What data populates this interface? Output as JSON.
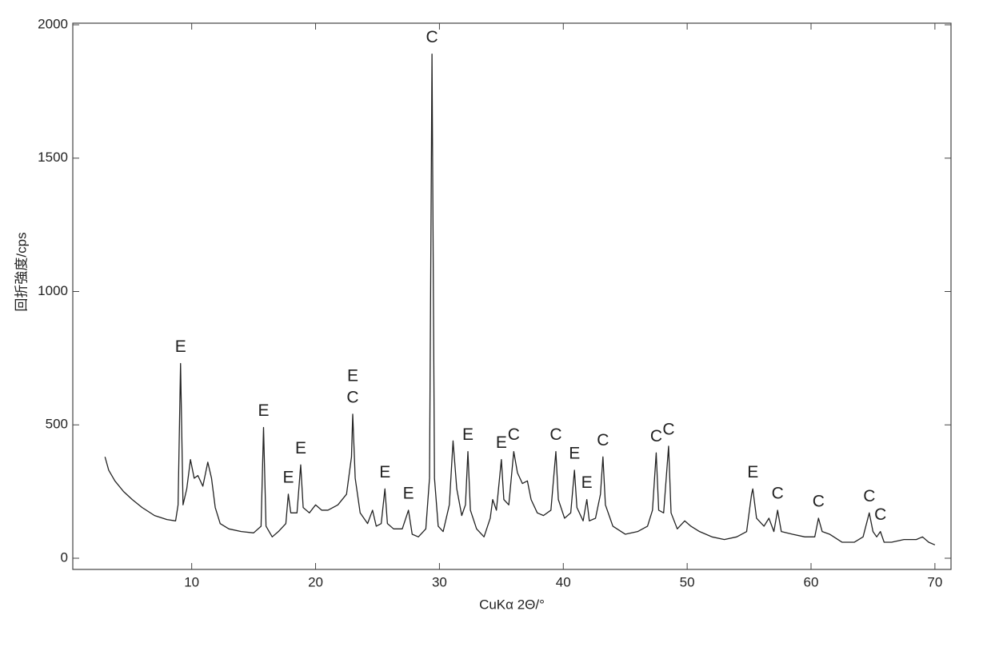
{
  "chart_data": {
    "type": "line",
    "xlabel": "CuKα 2Θ/°",
    "ylabel": "回折強度/cps",
    "xlim": [
      0.4,
      71.3
    ],
    "ylim": [
      -42,
      2006
    ],
    "xticks": [
      10,
      20,
      30,
      40,
      50,
      60,
      70
    ],
    "yticks": [
      0,
      500,
      1000,
      1500,
      2000
    ],
    "color": "#222222",
    "x": [
      3.0,
      3.3,
      3.8,
      4.5,
      5.2,
      6,
      7,
      8,
      8.7,
      8.9,
      9.1,
      9.3,
      9.6,
      9.9,
      10.2,
      10.5,
      10.9,
      11.3,
      11.6,
      11.9,
      12.3,
      13,
      14,
      15,
      15.6,
      15.8,
      16,
      16.5,
      17,
      17.6,
      17.8,
      18,
      18.5,
      18.8,
      19,
      19.5,
      20,
      20.5,
      21,
      21.8,
      22.5,
      22.9,
      23.0,
      23.2,
      23.6,
      24.2,
      24.6,
      24.9,
      25.3,
      25.6,
      25.8,
      26.3,
      27,
      27.5,
      27.8,
      28.3,
      28.9,
      29.2,
      29.4,
      29.6,
      29.9,
      30.3,
      30.8,
      31.1,
      31.4,
      31.8,
      32.1,
      32.3,
      32.5,
      33,
      33.6,
      34.1,
      34.3,
      34.6,
      35.0,
      35.2,
      35.6,
      36.0,
      36.3,
      36.7,
      37.1,
      37.4,
      37.9,
      38.4,
      39,
      39.4,
      39.6,
      40.1,
      40.6,
      40.9,
      41.1,
      41.6,
      41.9,
      42.1,
      42.6,
      43.0,
      43.2,
      43.4,
      44,
      45,
      46,
      46.8,
      47.2,
      47.5,
      47.7,
      48.1,
      48.5,
      48.7,
      49.2,
      49.8,
      50.3,
      51,
      52,
      53,
      54,
      54.8,
      55.2,
      55.3,
      55.6,
      56.2,
      56.6,
      57,
      57.3,
      57.6,
      58.5,
      59.5,
      60.3,
      60.6,
      60.9,
      61.5,
      62.5,
      63.5,
      64.2,
      64.7,
      65,
      65.3,
      65.6,
      65.9,
      66.5,
      67.5,
      68.5,
      69,
      69.5,
      70
    ],
    "values": [
      380,
      330,
      290,
      250,
      220,
      190,
      160,
      145,
      140,
      200,
      730,
      200,
      260,
      370,
      300,
      310,
      270,
      360,
      300,
      190,
      130,
      110,
      100,
      95,
      120,
      490,
      120,
      80,
      100,
      130,
      240,
      170,
      170,
      350,
      190,
      170,
      200,
      180,
      180,
      200,
      240,
      380,
      540,
      300,
      170,
      130,
      180,
      120,
      130,
      260,
      130,
      110,
      110,
      180,
      90,
      80,
      110,
      300,
      1890,
      300,
      120,
      100,
      200,
      440,
      260,
      160,
      200,
      400,
      180,
      110,
      80,
      150,
      220,
      180,
      370,
      220,
      200,
      400,
      320,
      280,
      290,
      220,
      170,
      160,
      180,
      400,
      220,
      150,
      170,
      330,
      190,
      140,
      220,
      140,
      150,
      240,
      380,
      200,
      120,
      90,
      100,
      120,
      180,
      395,
      180,
      170,
      420,
      170,
      110,
      140,
      120,
      100,
      80,
      70,
      80,
      100,
      240,
      260,
      150,
      120,
      150,
      100,
      180,
      100,
      90,
      80,
      80,
      150,
      100,
      90,
      60,
      60,
      80,
      170,
      100,
      80,
      100,
      60,
      60,
      70,
      70,
      80,
      60,
      50
    ],
    "peaks": [
      {
        "x": 9.1,
        "y": 730,
        "labels": [
          "E"
        ]
      },
      {
        "x": 15.8,
        "y": 490,
        "labels": [
          "E"
        ]
      },
      {
        "x": 17.8,
        "y": 240,
        "labels": [
          "E"
        ]
      },
      {
        "x": 18.8,
        "y": 350,
        "labels": [
          "E"
        ]
      },
      {
        "x": 23.0,
        "y": 540,
        "labels": [
          "E",
          "C"
        ]
      },
      {
        "x": 25.6,
        "y": 260,
        "labels": [
          "E"
        ]
      },
      {
        "x": 27.5,
        "y": 180,
        "labels": [
          "E"
        ]
      },
      {
        "x": 29.4,
        "y": 1890,
        "labels": [
          "C"
        ]
      },
      {
        "x": 32.3,
        "y": 400,
        "labels": [
          "E"
        ]
      },
      {
        "x": 35.0,
        "y": 370,
        "labels": [
          "E"
        ]
      },
      {
        "x": 36.0,
        "y": 400,
        "labels": [
          "C"
        ]
      },
      {
        "x": 39.4,
        "y": 400,
        "labels": [
          "C"
        ]
      },
      {
        "x": 40.9,
        "y": 330,
        "labels": [
          "E"
        ]
      },
      {
        "x": 41.9,
        "y": 220,
        "labels": [
          "E"
        ]
      },
      {
        "x": 43.2,
        "y": 380,
        "labels": [
          "C"
        ]
      },
      {
        "x": 47.5,
        "y": 395,
        "labels": [
          "C"
        ]
      },
      {
        "x": 48.5,
        "y": 420,
        "labels": [
          "C"
        ]
      },
      {
        "x": 55.3,
        "y": 260,
        "labels": [
          "E"
        ]
      },
      {
        "x": 57.3,
        "y": 180,
        "labels": [
          "C"
        ]
      },
      {
        "x": 60.6,
        "y": 150,
        "labels": [
          "C"
        ]
      },
      {
        "x": 64.7,
        "y": 170,
        "labels": [
          "C"
        ]
      },
      {
        "x": 65.6,
        "y": 100,
        "labels": [
          "C"
        ]
      }
    ]
  }
}
